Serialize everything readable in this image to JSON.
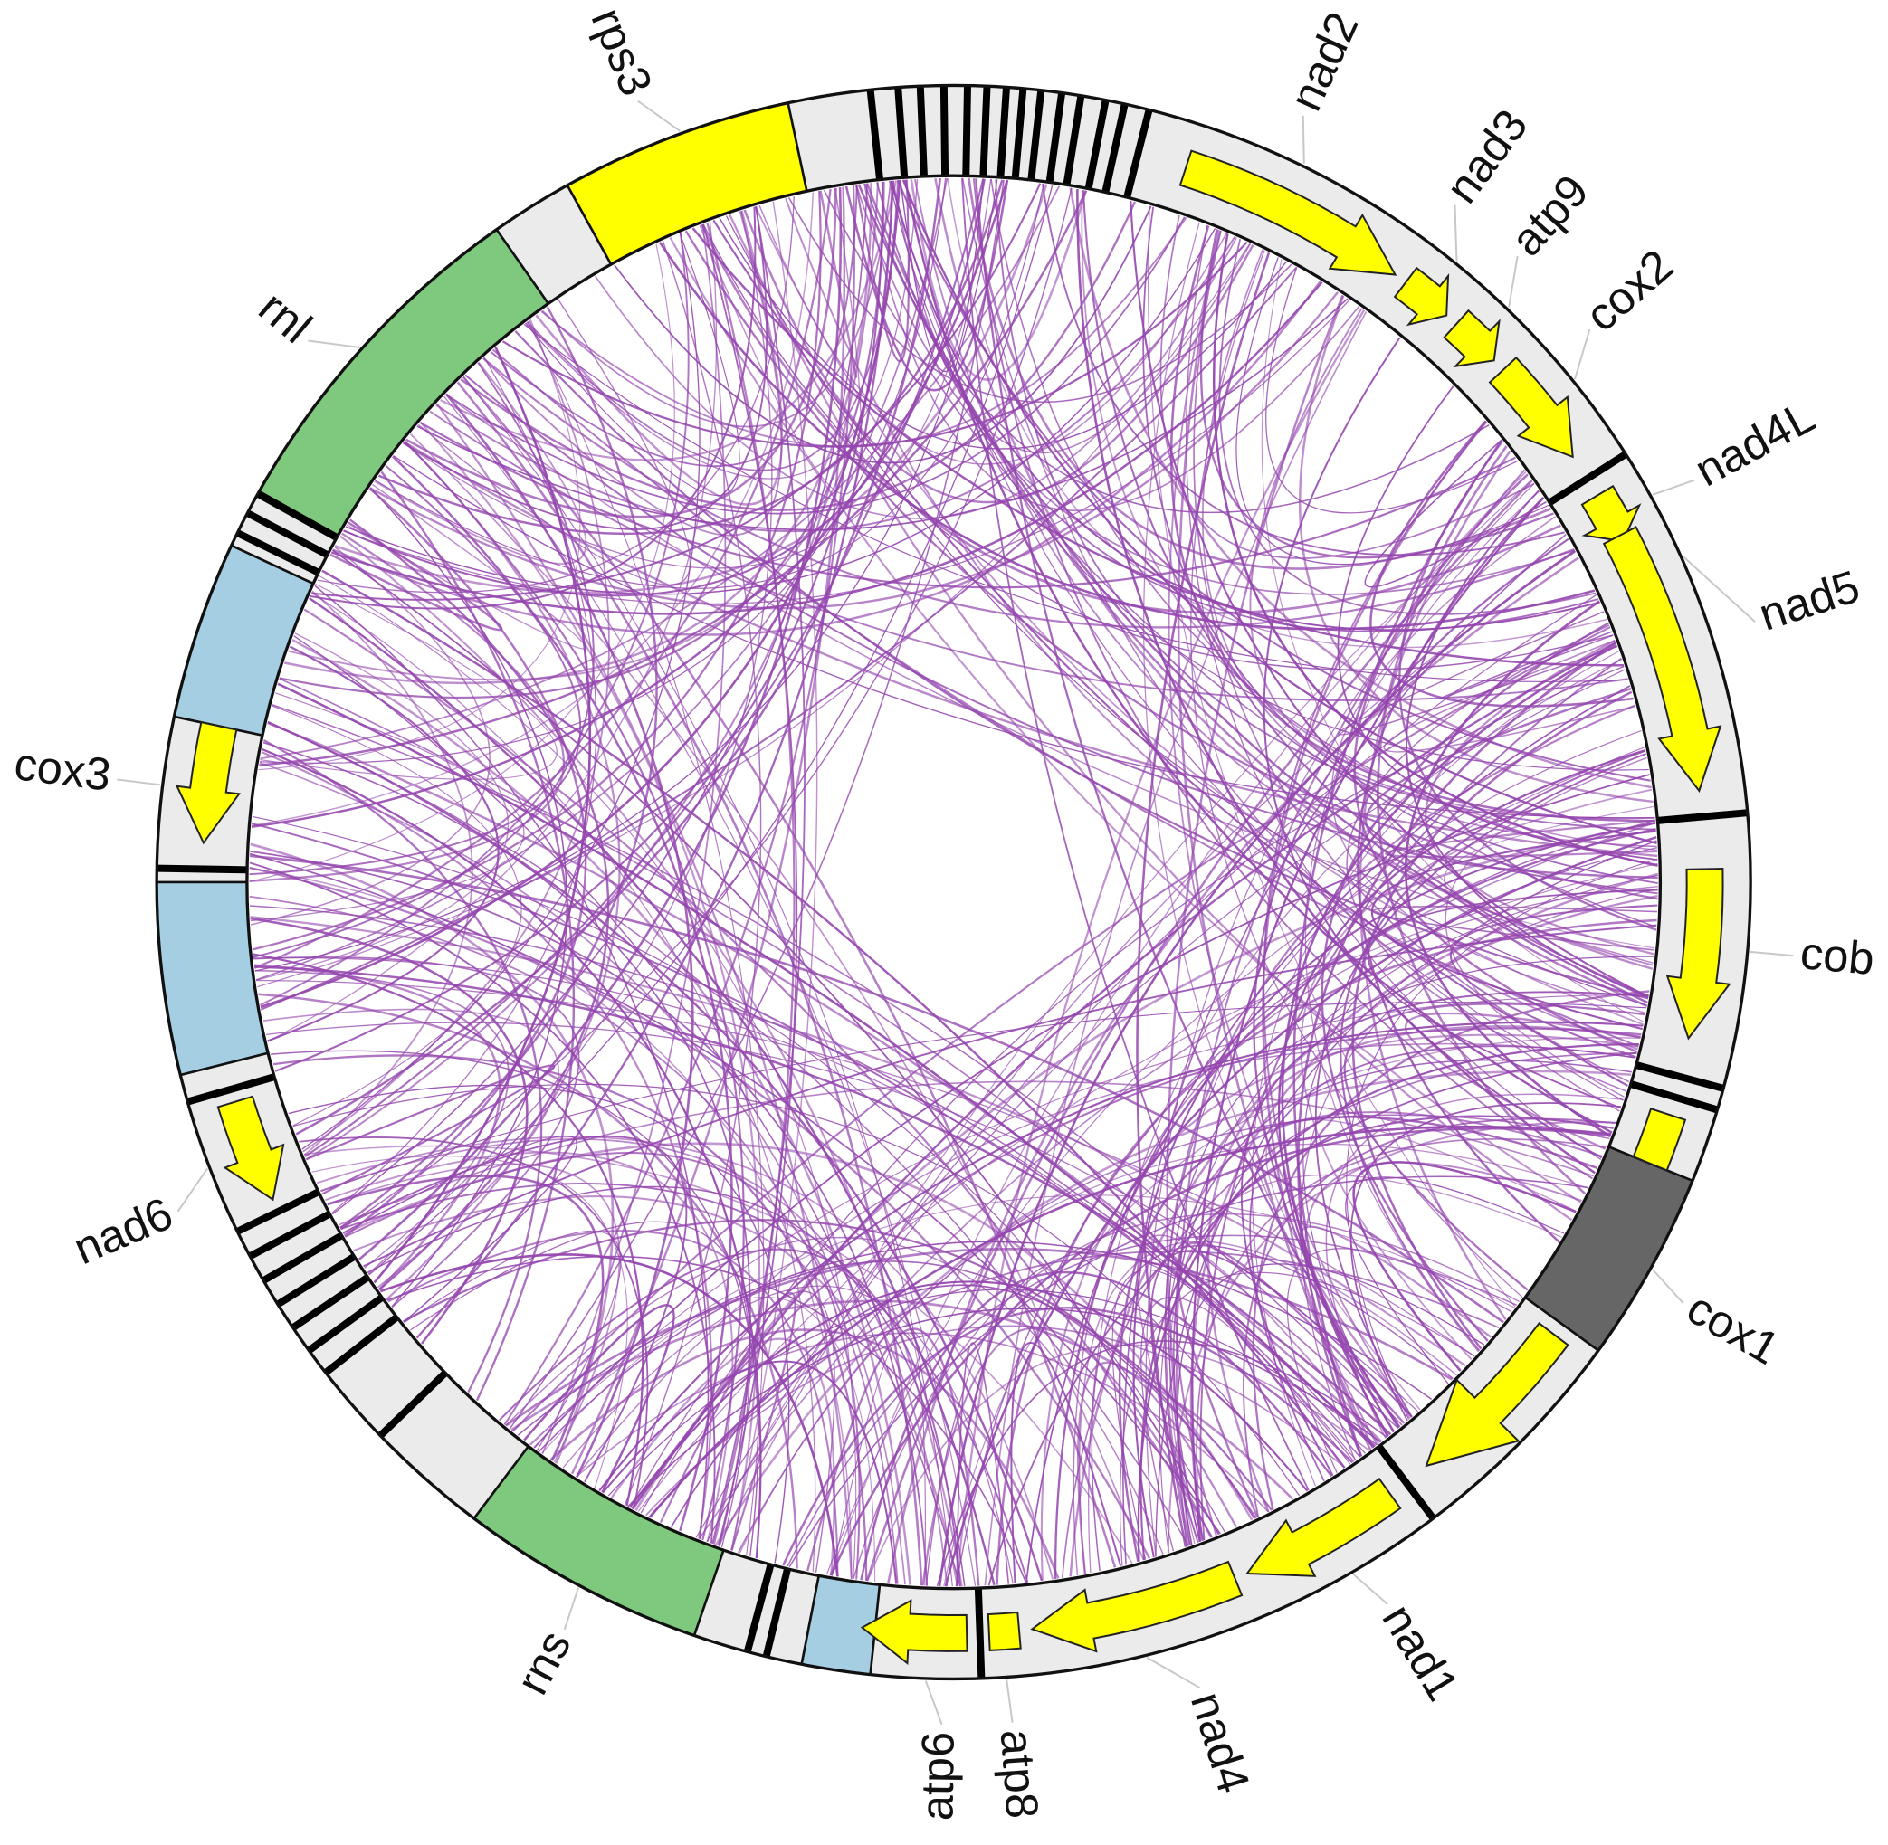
{
  "labels": [
    "rps3",
    "nad2",
    "nad3",
    "atp9",
    "cox2",
    "nad4L",
    "nad5",
    "cob",
    "cox1",
    "nad1",
    "nad4",
    "atp8",
    "atp6",
    "rns",
    "nad6",
    "cox3",
    "rnl"
  ]
}
